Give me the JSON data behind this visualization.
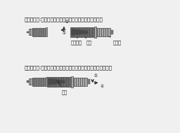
{
  "bg_color": "#f0f0f0",
  "title1": "装合操作時:プラグを差込後、スリーブを矢印方向へ回す",
  "title2": "離脱時操作:スリーブを矢印と逆に回した後、プラグを引き抜く",
  "label_sleeve": "スリーブ",
  "label_yajirushi1": "矢印",
  "label_plug": "プラグ",
  "label_yajirushi2": "矢印",
  "c_body": "#7a7a7a",
  "c_dark": "#4a4a4a",
  "c_mid": "#696969",
  "c_light": "#a8a8a8",
  "c_vlight": "#c8c8c8",
  "c_thread": "#5a5a5a",
  "text_color": "#111111",
  "fs_title": 5.2,
  "fs_label": 4.8
}
